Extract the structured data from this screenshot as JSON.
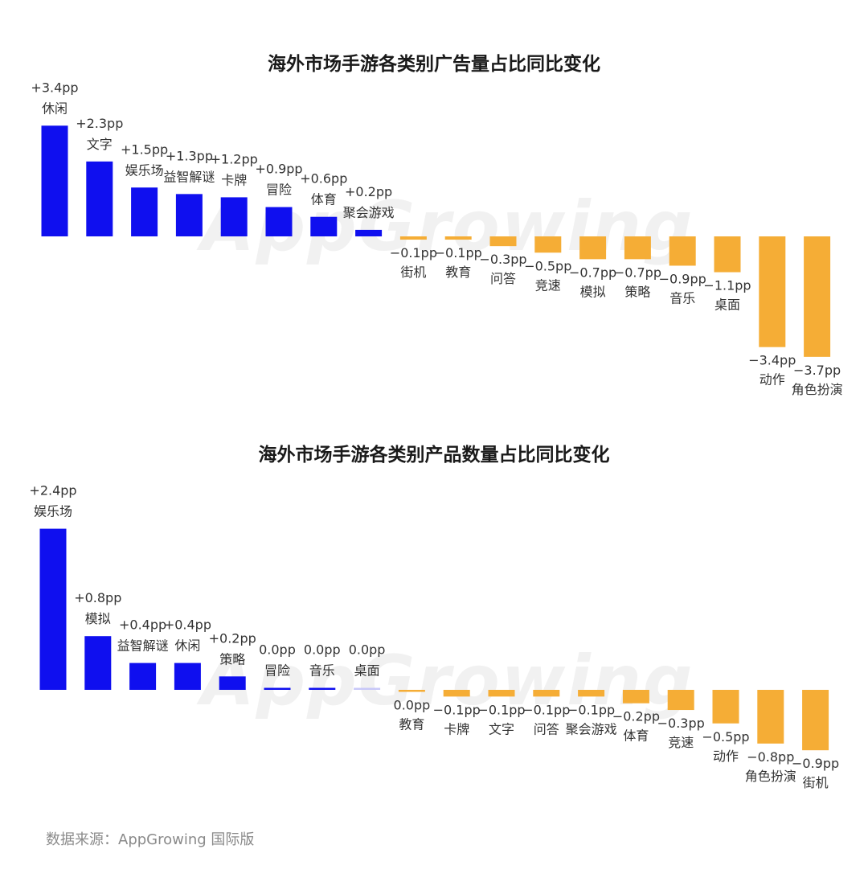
{
  "charts": {
    "title_1": "海外市场手游各类别广告量占比同比变化",
    "title_2": "海外市场手游各类别产品数量占比同比变化"
  },
  "watermark": "AppGrowing",
  "source": "数据来源：AppGrowing 国际版",
  "colors": {
    "positive": "#0f0fef",
    "negative": "#f5ad36"
  },
  "chart_data": [
    {
      "type": "bar",
      "title": "海外市场手游各类别广告量占比同比变化",
      "unit": "pp",
      "categories": [
        "休闲",
        "文字",
        "娱乐场",
        "益智解谜",
        "卡牌",
        "冒险",
        "体育",
        "聚会游戏",
        "街机",
        "教育",
        "问答",
        "竞速",
        "模拟",
        "策略",
        "音乐",
        "桌面",
        "动作",
        "角色扮演"
      ],
      "values": [
        3.4,
        2.3,
        1.5,
        1.3,
        1.2,
        0.9,
        0.6,
        0.2,
        -0.1,
        -0.1,
        -0.3,
        -0.5,
        -0.7,
        -0.7,
        -0.9,
        -1.1,
        -3.4,
        -3.7
      ],
      "labels": [
        "+3.4pp",
        "+2.3pp",
        "+1.5pp",
        "+1.3pp",
        "+1.2pp",
        "+0.9pp",
        "+0.6pp",
        "+0.2pp",
        "−0.1pp",
        "−0.1pp",
        "−0.3pp",
        "−0.5pp",
        "−0.7pp",
        "−0.7pp",
        "−0.9pp",
        "−1.1pp",
        "−3.4pp",
        "−3.7pp"
      ]
    },
    {
      "type": "bar",
      "title": "海外市场手游各类别产品数量占比同比变化",
      "unit": "pp",
      "categories": [
        "娱乐场",
        "模拟",
        "益智解谜",
        "休闲",
        "策略",
        "冒险",
        "音乐",
        "桌面",
        "教育",
        "卡牌",
        "文字",
        "问答",
        "聚会游戏",
        "体育",
        "竞速",
        "动作",
        "角色扮演",
        "街机"
      ],
      "values": [
        2.4,
        0.8,
        0.4,
        0.4,
        0.2,
        0.0,
        0.0,
        0.0,
        0.0,
        -0.1,
        -0.1,
        -0.1,
        -0.1,
        -0.2,
        -0.3,
        -0.5,
        -0.8,
        -0.9
      ],
      "labels": [
        "+2.4pp",
        "+0.8pp",
        "+0.4pp",
        "+0.4pp",
        "+0.2pp",
        "0.0pp",
        "0.0pp",
        "0.0pp",
        "0.0pp",
        "−0.1pp",
        "−0.1pp",
        "−0.1pp",
        "−0.1pp",
        "−0.2pp",
        "−0.3pp",
        "−0.5pp",
        "−0.8pp",
        "−0.9pp"
      ]
    }
  ]
}
